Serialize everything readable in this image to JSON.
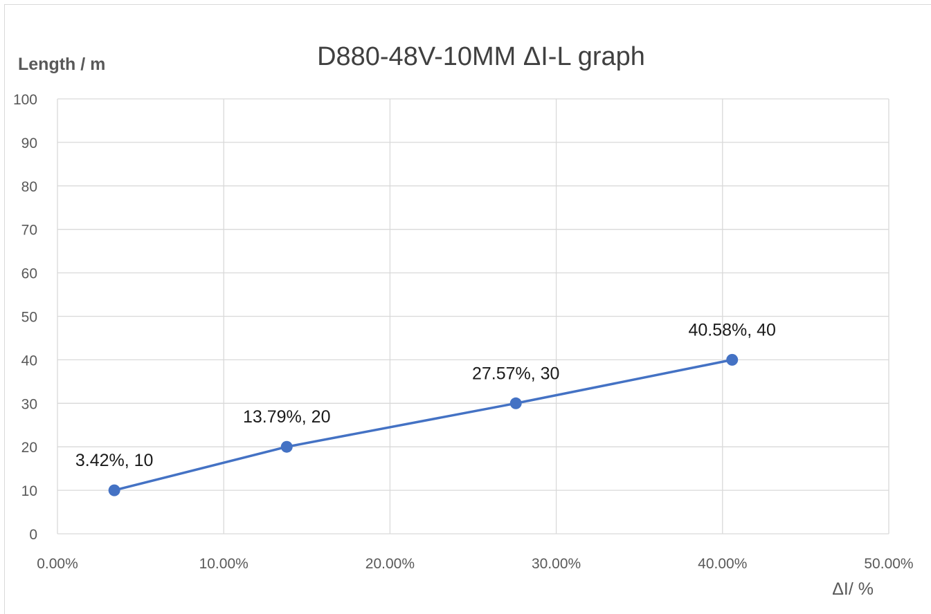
{
  "chart_data": {
    "type": "line",
    "title": "D880-48V-10MM   ΔI-L graph",
    "xlabel": "ΔI/ %",
    "ylabel": "Length / m",
    "xlim": [
      0,
      50
    ],
    "ylim": [
      0,
      100
    ],
    "x_ticks": [
      0,
      10,
      20,
      30,
      40,
      50
    ],
    "x_tick_labels": [
      "0.00%",
      "10.00%",
      "20.00%",
      "30.00%",
      "40.00%",
      "50.00%"
    ],
    "y_ticks": [
      0,
      10,
      20,
      30,
      40,
      50,
      60,
      70,
      80,
      90,
      100
    ],
    "y_tick_labels": [
      "0",
      "10",
      "20",
      "30",
      "40",
      "50",
      "60",
      "70",
      "80",
      "90",
      "100"
    ],
    "grid": true,
    "legend": "none",
    "series": [
      {
        "color": "#4472c4",
        "points": [
          {
            "x": 3.42,
            "y": 10,
            "label": "3.42%, 10"
          },
          {
            "x": 13.79,
            "y": 20,
            "label": "13.79%, 20"
          },
          {
            "x": 27.57,
            "y": 30,
            "label": "27.57%, 30"
          },
          {
            "x": 40.58,
            "y": 40,
            "label": "40.58%, 40"
          }
        ]
      }
    ]
  }
}
